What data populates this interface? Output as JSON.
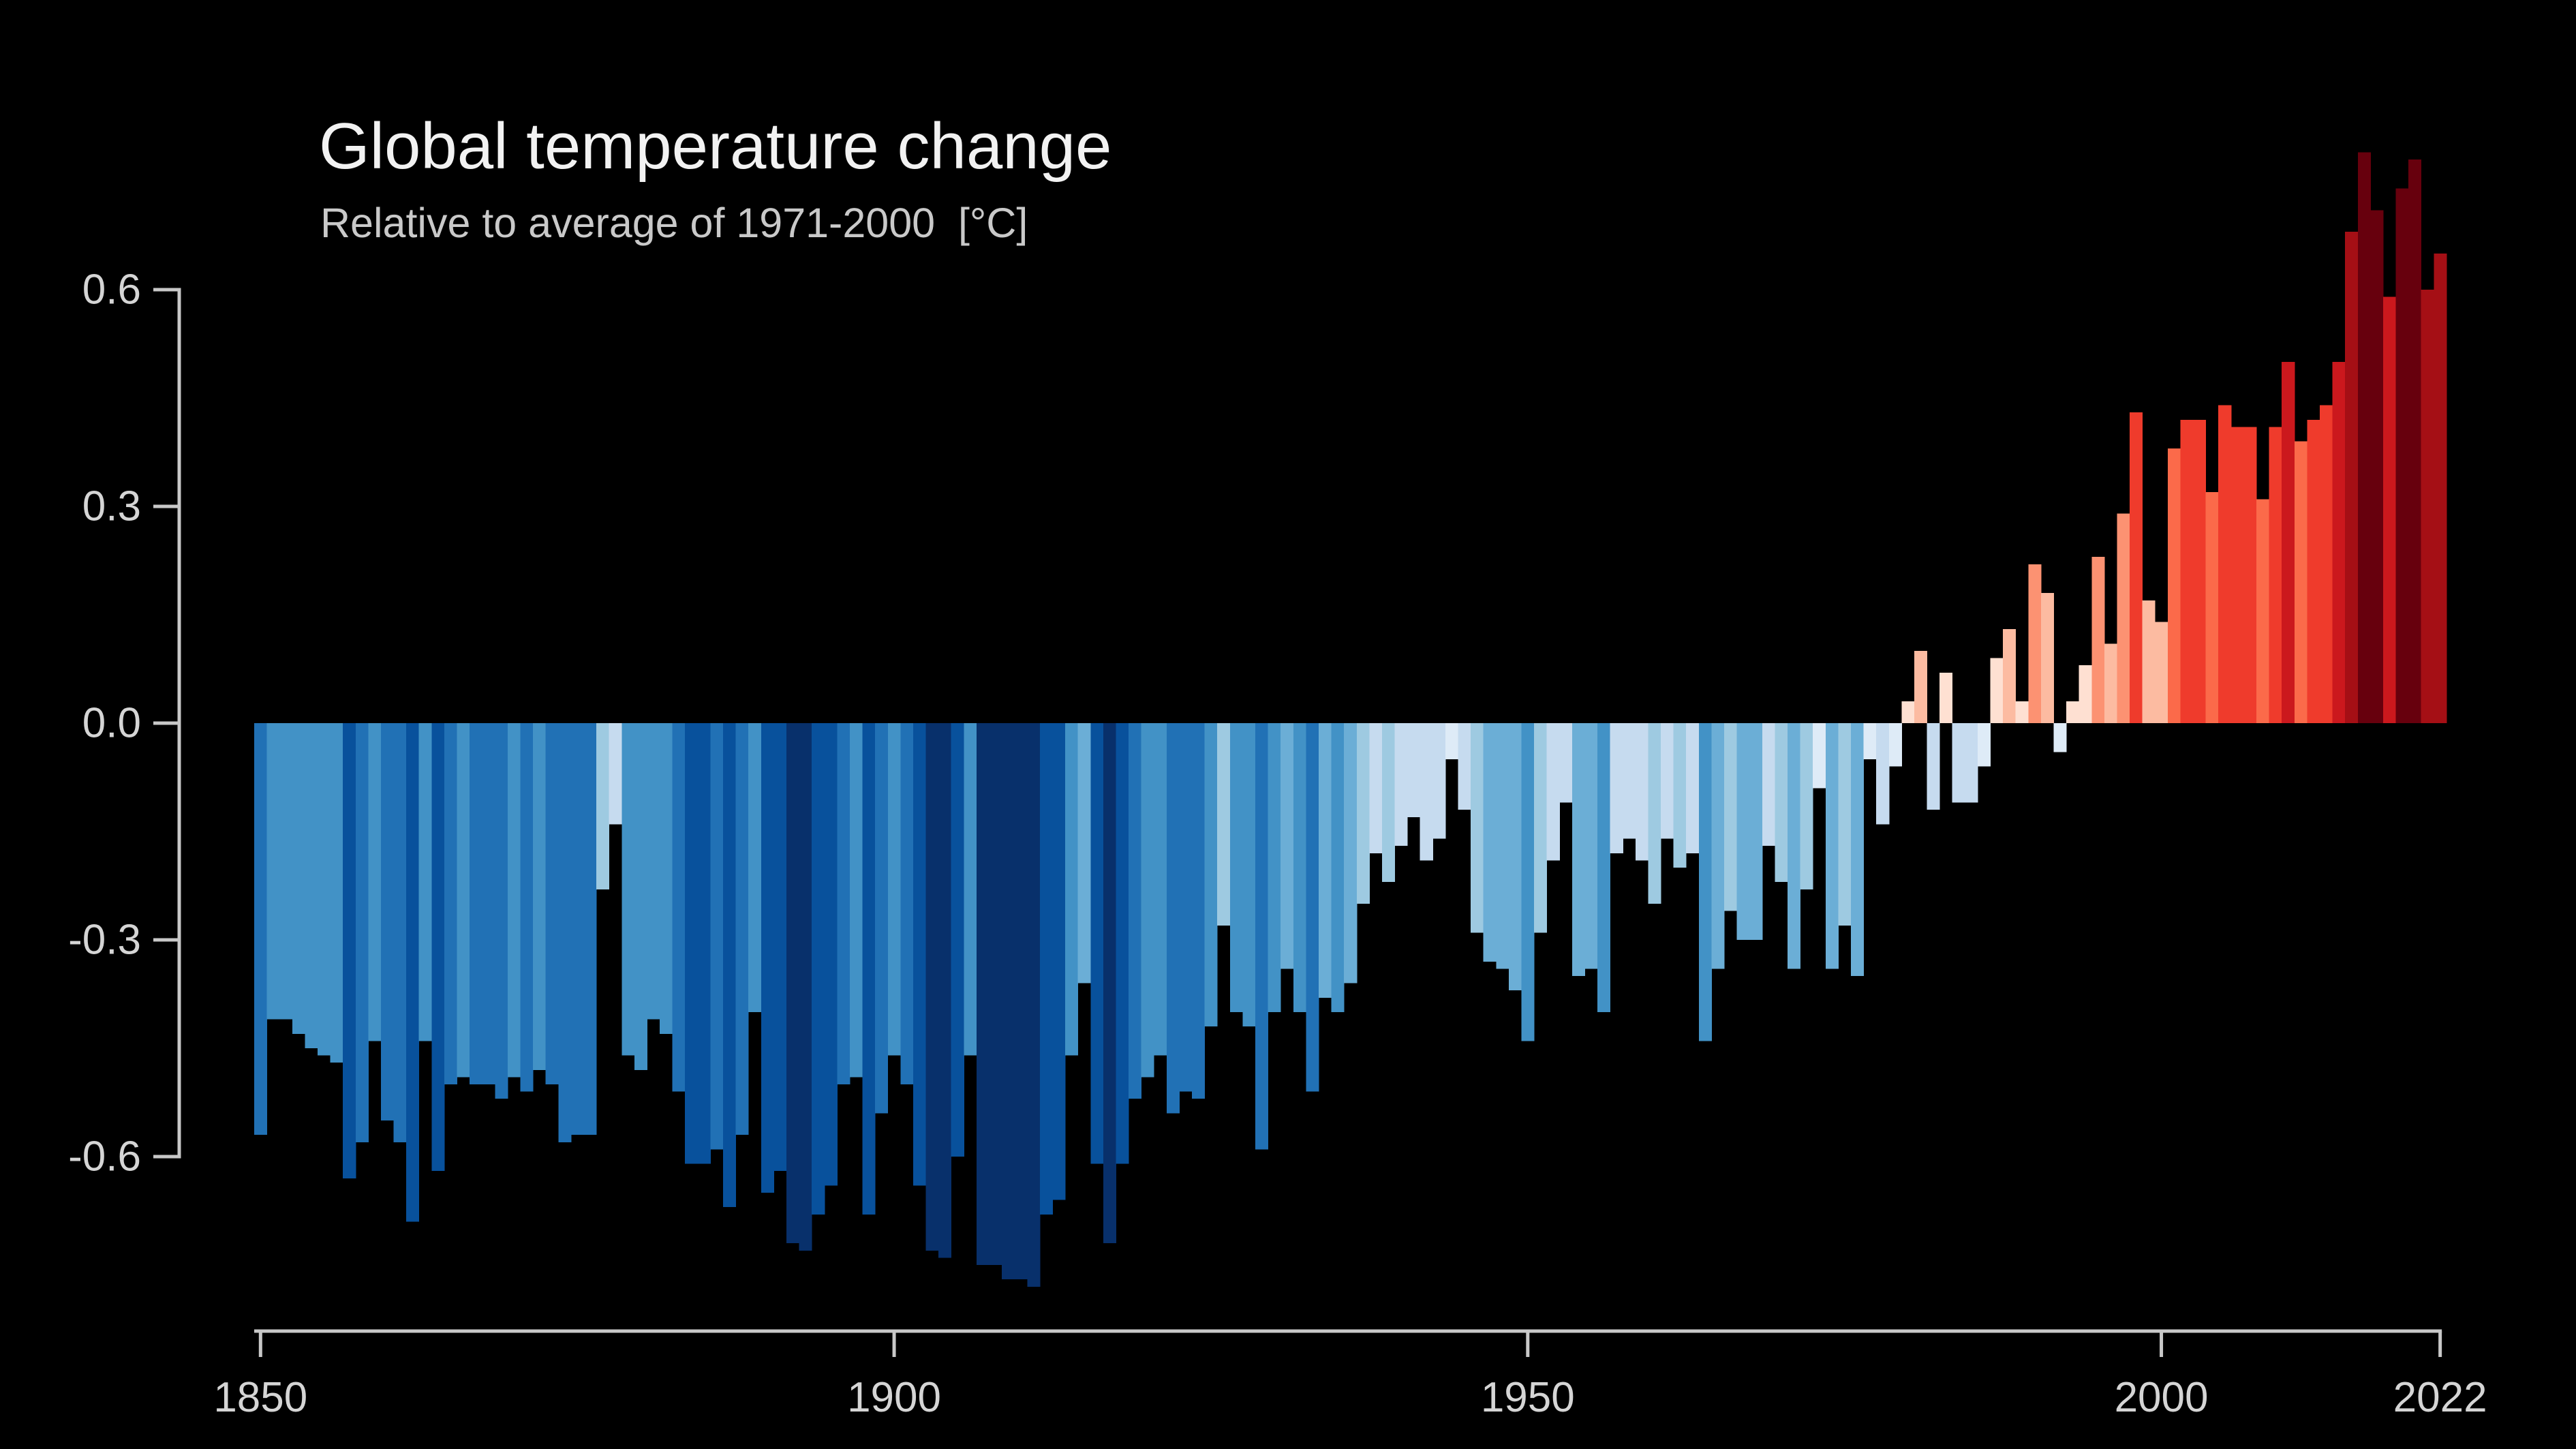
{
  "chart_data": {
    "type": "bar",
    "title": "Global temperature change",
    "subtitle": "Relative to average of 1971-2000  [°C]",
    "unit": "°C",
    "x_start": 1850,
    "x_end": 2022,
    "x_ticks": [
      1850,
      1900,
      1950,
      2000,
      2022
    ],
    "x_tick_labels": [
      "1850",
      "1900",
      "1950",
      "2000",
      "2022"
    ],
    "y_ticks": [
      0.6,
      0.3,
      0.0,
      -0.3,
      -0.6
    ],
    "y_tick_labels": [
      "0.6",
      "0.3",
      "0.0",
      "-0.3",
      "-0.6"
    ],
    "ylim": [
      -0.8,
      0.8
    ],
    "grid": false,
    "legend": "none",
    "baseline": 0.0,
    "values": [
      -0.57,
      -0.41,
      -0.41,
      -0.43,
      -0.45,
      -0.46,
      -0.47,
      -0.63,
      -0.58,
      -0.44,
      -0.55,
      -0.58,
      -0.69,
      -0.44,
      -0.62,
      -0.5,
      -0.49,
      -0.5,
      -0.5,
      -0.52,
      -0.49,
      -0.51,
      -0.48,
      -0.5,
      -0.58,
      -0.57,
      -0.57,
      -0.23,
      -0.14,
      -0.46,
      -0.48,
      -0.41,
      -0.43,
      -0.51,
      -0.61,
      -0.61,
      -0.59,
      -0.67,
      -0.57,
      -0.4,
      -0.65,
      -0.62,
      -0.72,
      -0.73,
      -0.68,
      -0.64,
      -0.5,
      -0.49,
      -0.68,
      -0.54,
      -0.46,
      -0.5,
      -0.64,
      -0.73,
      -0.74,
      -0.6,
      -0.46,
      -0.75,
      -0.75,
      -0.77,
      -0.77,
      -0.78,
      -0.68,
      -0.66,
      -0.46,
      -0.36,
      -0.61,
      -0.72,
      -0.61,
      -0.52,
      -0.49,
      -0.46,
      -0.54,
      -0.51,
      -0.52,
      -0.42,
      -0.28,
      -0.4,
      -0.42,
      -0.59,
      -0.4,
      -0.34,
      -0.4,
      -0.51,
      -0.38,
      -0.4,
      -0.36,
      -0.25,
      -0.18,
      -0.22,
      -0.17,
      -0.13,
      -0.19,
      -0.16,
      -0.05,
      -0.12,
      -0.29,
      -0.33,
      -0.34,
      -0.37,
      -0.44,
      -0.29,
      -0.19,
      -0.11,
      -0.35,
      -0.34,
      -0.4,
      -0.18,
      -0.16,
      -0.19,
      -0.25,
      -0.16,
      -0.2,
      -0.18,
      -0.44,
      -0.34,
      -0.26,
      -0.3,
      -0.3,
      -0.17,
      -0.22,
      -0.34,
      -0.23,
      -0.09,
      -0.34,
      -0.28,
      -0.35,
      -0.05,
      -0.14,
      -0.06,
      0.03,
      0.1,
      -0.12,
      0.07,
      -0.11,
      -0.11,
      -0.06,
      0.09,
      0.13,
      0.03,
      0.22,
      0.18,
      -0.04,
      0.03,
      0.08,
      0.23,
      0.11,
      0.29,
      0.43,
      0.17,
      0.14,
      0.38,
      0.42,
      0.42,
      0.32,
      0.44,
      0.41,
      0.41,
      0.31,
      0.41,
      0.5,
      0.39,
      0.42,
      0.44,
      0.5,
      0.68,
      0.79,
      0.71,
      0.59,
      0.74,
      0.78,
      0.6,
      0.65
    ],
    "palette": {
      "bin_width": 0.1,
      "blues_cold_to_light_reversed": [
        "#deebf7",
        "#c6dbef",
        "#9ecae1",
        "#6baed6",
        "#4292c6",
        "#2171b5",
        "#08519c",
        "#08306b"
      ],
      "reds_light_to_hot": [
        "#fee0d2",
        "#fcbba1",
        "#fc9272",
        "#fb6a4a",
        "#ef3b2c",
        "#cb181d",
        "#a50f15",
        "#67000d"
      ]
    },
    "colors": {
      "background": "#000000",
      "axis_line": "#c8c8c8",
      "tick_label": "#d5d5d5",
      "title": "#f2f2f2",
      "subtitle": "#c9c9c9"
    }
  }
}
